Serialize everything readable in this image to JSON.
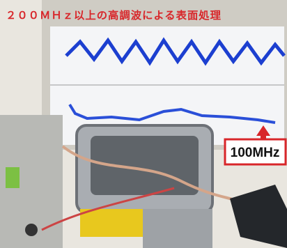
{
  "caption": {
    "title": "２００ＭＨｚ以上の高調波による表面処理",
    "frequency_label": "100MHz"
  }
}
